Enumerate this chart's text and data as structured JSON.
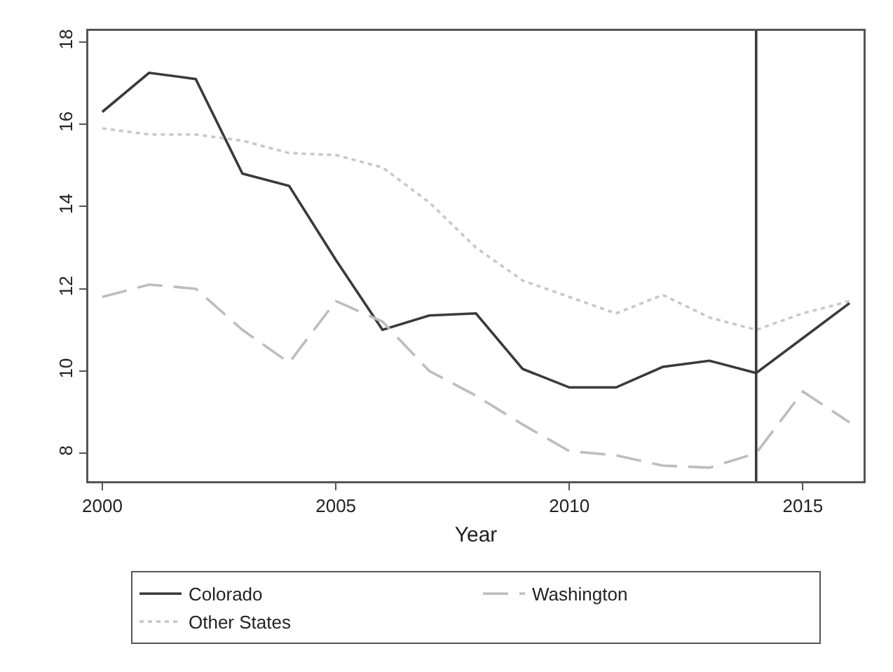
{
  "chart_data": {
    "type": "line",
    "xlabel": "Year",
    "x": [
      2000,
      2001,
      2002,
      2003,
      2004,
      2005,
      2006,
      2007,
      2008,
      2009,
      2010,
      2011,
      2012,
      2013,
      2014,
      2015,
      2016
    ],
    "series": [
      {
        "name": "Colorado",
        "color": "#3a3a3a",
        "line_style": "solid",
        "values": [
          16.3,
          17.25,
          17.1,
          14.8,
          14.5,
          12.7,
          11.0,
          11.35,
          11.4,
          10.05,
          9.6,
          9.6,
          10.1,
          10.25,
          9.95,
          10.8,
          11.65
        ]
      },
      {
        "name": "Washington",
        "color": "#bdbdbd",
        "line_style": "dashed",
        "values": [
          11.8,
          12.1,
          12.0,
          11.0,
          10.2,
          11.7,
          11.2,
          10.0,
          9.4,
          8.7,
          8.05,
          7.95,
          7.7,
          7.65,
          8.0,
          9.5,
          8.75
        ]
      },
      {
        "name": "Other States",
        "color": "#c8c8c8",
        "line_style": "dotted",
        "values": [
          15.9,
          15.75,
          15.75,
          15.6,
          15.3,
          15.25,
          14.95,
          14.1,
          13.0,
          12.2,
          11.8,
          11.4,
          11.85,
          11.3,
          11.0,
          11.4,
          11.7
        ]
      }
    ],
    "xlim": [
      1999.7,
      2016.3
    ],
    "xticks": [
      2000,
      2005,
      2010,
      2015
    ],
    "ylim": [
      7.32,
      18.27
    ],
    "yticks": [
      8,
      10,
      12,
      14,
      16,
      18
    ],
    "ref_lines": [
      {
        "axis": "x",
        "value": 2014,
        "color": "#3a3a3a"
      }
    ],
    "grid": false,
    "legend": "bottom",
    "marker": "none"
  }
}
